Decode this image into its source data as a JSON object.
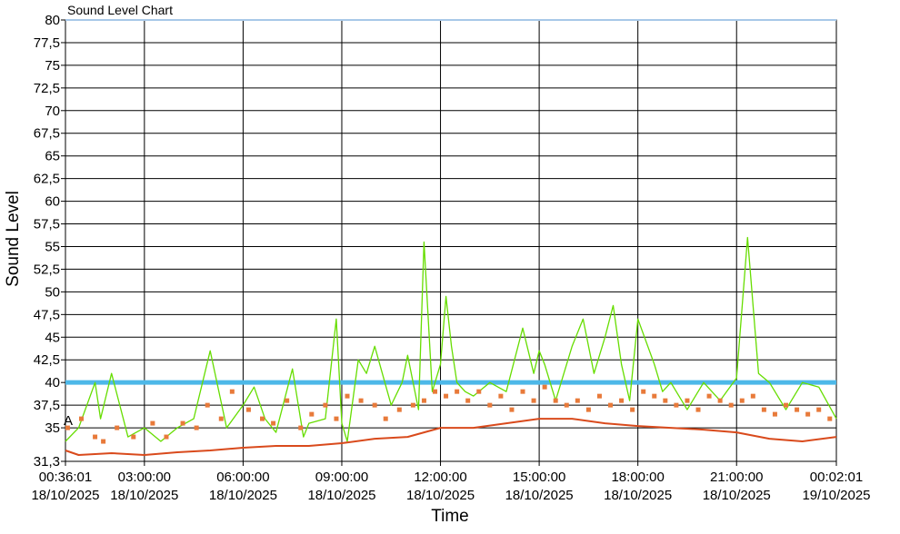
{
  "chart_data": {
    "type": "line",
    "title": "Sound Level Chart",
    "xlabel": "Time",
    "ylabel": "Sound Level",
    "ylim": [
      31.3,
      80
    ],
    "y_ticks": [
      "31,3",
      "35",
      "37,5",
      "40",
      "42,5",
      "45",
      "47,5",
      "50",
      "52,5",
      "55",
      "57,5",
      "60",
      "62,5",
      "65",
      "67,5",
      "70",
      "72,5",
      "75",
      "77,5",
      "80"
    ],
    "x_ticks": [
      {
        "time": "00:36:01",
        "date": "18/10/2025"
      },
      {
        "time": "03:00:00",
        "date": "18/10/2025"
      },
      {
        "time": "06:00:00",
        "date": "18/10/2025"
      },
      {
        "time": "09:00:00",
        "date": "18/10/2025"
      },
      {
        "time": "12:00:00",
        "date": "18/10/2025"
      },
      {
        "time": "15:00:00",
        "date": "18/10/2025"
      },
      {
        "time": "18:00:00",
        "date": "18/10/2025"
      },
      {
        "time": "21:00:00",
        "date": "18/10/2025"
      },
      {
        "time": "00:02:01",
        "date": "19/10/2025"
      }
    ],
    "threshold": {
      "value": 40,
      "color": "#4db8e8"
    },
    "annotation": "A",
    "grid": true,
    "series": [
      {
        "kind": "max-line",
        "color": "#66dd00",
        "x": [
          "00:36",
          "01:00",
          "01:30",
          "01:40",
          "02:00",
          "02:30",
          "03:00",
          "03:30",
          "04:00",
          "04:30",
          "05:00",
          "05:30",
          "06:00",
          "06:20",
          "06:40",
          "07:00",
          "07:30",
          "07:50",
          "08:00",
          "08:30",
          "08:50",
          "09:00",
          "09:10",
          "09:30",
          "09:45",
          "10:00",
          "10:30",
          "10:50",
          "11:00",
          "11:20",
          "11:30",
          "11:45",
          "12:00",
          "12:10",
          "12:20",
          "12:30",
          "12:45",
          "13:00",
          "13:30",
          "14:00",
          "14:30",
          "14:50",
          "15:00",
          "15:10",
          "15:30",
          "16:00",
          "16:20",
          "16:40",
          "17:00",
          "17:15",
          "17:30",
          "17:45",
          "18:00",
          "18:30",
          "18:45",
          "19:00",
          "19:30",
          "20:00",
          "20:30",
          "21:00",
          "21:20",
          "21:40",
          "22:00",
          "22:30",
          "23:00",
          "23:30",
          "00:02"
        ],
        "values": [
          33.5,
          35,
          40,
          36,
          41,
          34,
          35,
          33.5,
          35,
          36,
          43.5,
          35,
          37.5,
          39.5,
          36,
          34.5,
          41.5,
          34,
          35.5,
          36,
          47,
          35.5,
          33.5,
          42.5,
          41,
          44,
          37.5,
          40,
          43,
          37,
          55.5,
          39,
          42,
          49.5,
          44,
          40,
          39,
          38.5,
          40,
          39,
          46,
          41,
          43.5,
          42,
          38,
          44,
          47,
          41,
          45,
          48.5,
          42,
          38,
          47,
          42,
          39,
          40,
          37,
          40,
          38,
          40.5,
          56,
          41,
          40,
          37,
          40,
          39.5,
          36
        ]
      },
      {
        "kind": "min-line",
        "color": "#d94a1c",
        "x": [
          "00:36",
          "01:00",
          "02:00",
          "03:00",
          "04:00",
          "05:00",
          "06:00",
          "07:00",
          "08:00",
          "09:00",
          "10:00",
          "11:00",
          "12:00",
          "13:00",
          "14:00",
          "15:00",
          "16:00",
          "17:00",
          "18:00",
          "19:00",
          "20:00",
          "21:00",
          "22:00",
          "23:00",
          "00:02"
        ],
        "values": [
          32.5,
          32,
          32.2,
          32,
          32.3,
          32.5,
          32.8,
          33,
          33,
          33.3,
          33.8,
          34,
          35,
          35,
          35.5,
          36,
          36,
          35.5,
          35.2,
          35,
          34.8,
          34.5,
          33.8,
          33.5,
          34
        ]
      },
      {
        "kind": "markers",
        "color": "#e87a3a",
        "x": [
          "00:40",
          "01:05",
          "01:30",
          "01:45",
          "02:10",
          "02:40",
          "03:15",
          "03:40",
          "04:10",
          "04:35",
          "04:55",
          "05:20",
          "05:40",
          "06:10",
          "06:35",
          "06:55",
          "07:20",
          "07:45",
          "08:05",
          "08:30",
          "08:50",
          "09:10",
          "09:35",
          "10:00",
          "10:20",
          "10:45",
          "11:10",
          "11:30",
          "11:50",
          "12:10",
          "12:30",
          "12:50",
          "13:10",
          "13:30",
          "13:50",
          "14:10",
          "14:30",
          "14:50",
          "15:10",
          "15:30",
          "15:50",
          "16:10",
          "16:30",
          "16:50",
          "17:10",
          "17:30",
          "17:50",
          "18:10",
          "18:30",
          "18:50",
          "19:10",
          "19:30",
          "19:50",
          "20:10",
          "20:30",
          "20:50",
          "21:10",
          "21:30",
          "21:50",
          "22:10",
          "22:30",
          "22:50",
          "23:10",
          "23:30",
          "23:50"
        ],
        "values": [
          35,
          36,
          34,
          33.5,
          35,
          34,
          35.5,
          34,
          35.5,
          35,
          37.5,
          36,
          39,
          37,
          36,
          35.5,
          38,
          35,
          36.5,
          37.5,
          36,
          38.5,
          38,
          37.5,
          36,
          37,
          37.5,
          38,
          39,
          38.5,
          39,
          38,
          39,
          37.5,
          38.5,
          37,
          39,
          38,
          39.5,
          38,
          37.5,
          38,
          37,
          38.5,
          37.5,
          38,
          37,
          39,
          38.5,
          38,
          37.5,
          38,
          37,
          38.5,
          38,
          37.5,
          38,
          38.5,
          37,
          36.5,
          37.5,
          37,
          36.5,
          37,
          36
        ]
      }
    ]
  }
}
